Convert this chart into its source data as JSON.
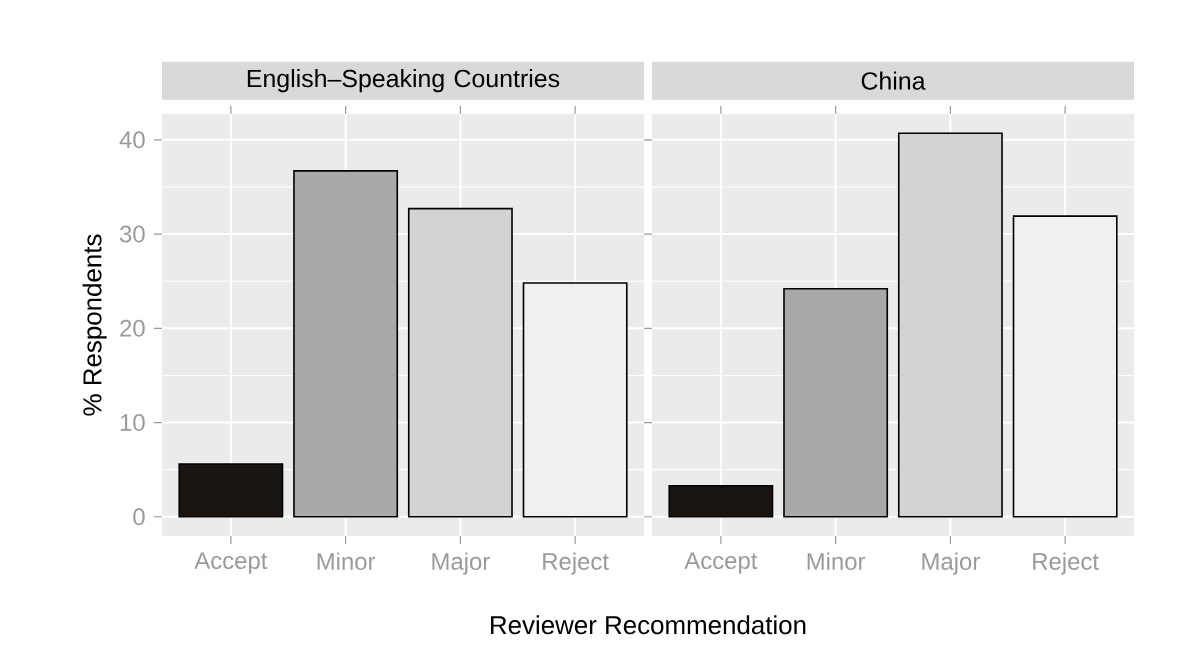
{
  "chart_data": [
    {
      "type": "bar",
      "title": "English–Speaking Countries",
      "xlabel": "Reviewer Recommendation",
      "ylabel": "% Respondents",
      "categories": [
        "Accept",
        "Minor",
        "Major",
        "Reject"
      ],
      "values": [
        5.6,
        36.7,
        32.7,
        24.8
      ],
      "colors": [
        "#1a1410",
        "#a9a9a9",
        "#d3d3d3",
        "#f0f0f0"
      ],
      "ylim": [
        -2.04,
        42.74
      ],
      "yticks": [
        0,
        10,
        20,
        30,
        40
      ],
      "grid": true
    },
    {
      "type": "bar",
      "title": "China",
      "categories": [
        "Accept",
        "Minor",
        "Major",
        "Reject"
      ],
      "values": [
        3.3,
        24.2,
        40.7,
        31.9
      ],
      "colors": [
        "#1a1410",
        "#a9a9a9",
        "#d3d3d3",
        "#f0f0f0"
      ],
      "ylim": [
        -2.04,
        42.74
      ],
      "yticks": [
        0,
        10,
        20,
        30,
        40
      ],
      "grid": true,
      "tick_labels": "x"
    }
  ]
}
